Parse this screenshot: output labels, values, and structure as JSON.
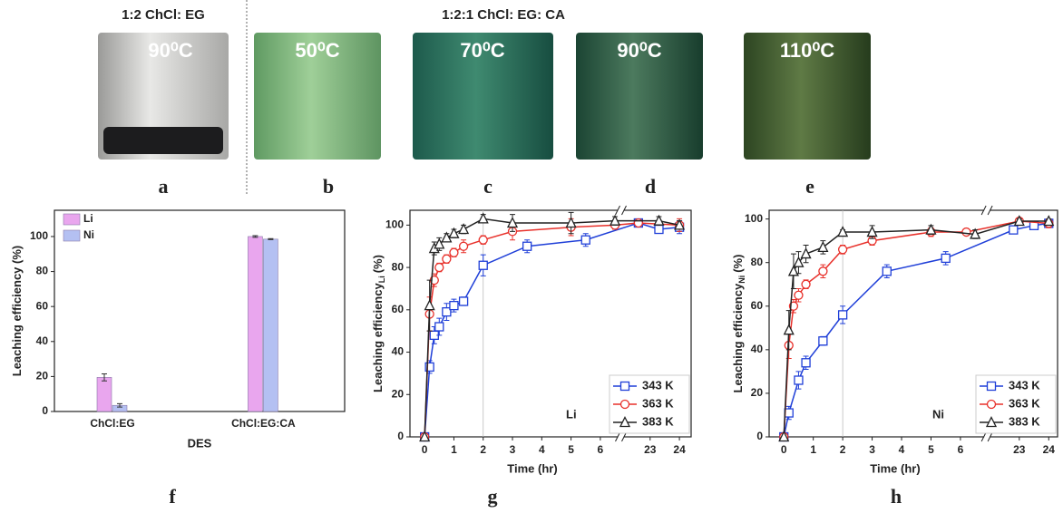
{
  "photos": {
    "group_labels": [
      "1:2 ChCl: EG",
      "1:2:1 ChCl: EG: CA"
    ],
    "temperatures": [
      "90⁰C",
      "50⁰C",
      "70⁰C",
      "90⁰C",
      "110⁰C"
    ],
    "panel_labels": [
      "a",
      "b",
      "c",
      "d",
      "e"
    ]
  },
  "chart_data": [
    {
      "type": "bar",
      "panel_label": "f",
      "xlabel": "DES",
      "ylabel": "Leaching efficiency (%)",
      "categories": [
        "ChCl:EG",
        "ChCl:EG:CA"
      ],
      "series": [
        {
          "name": "Li",
          "color": "#e9a6ee",
          "values": [
            19.5,
            100
          ],
          "errors": [
            2,
            0.5
          ]
        },
        {
          "name": "Ni",
          "color": "#b4c0f2",
          "values": [
            3.5,
            98.5
          ],
          "errors": [
            1,
            0.3
          ]
        }
      ],
      "ylim": [
        0,
        115
      ],
      "yticks": [
        0,
        20,
        40,
        60,
        80,
        100
      ],
      "legend": "upper left"
    },
    {
      "type": "line",
      "panel_label": "g",
      "xlabel": "Time (hr)",
      "ylabel": "Leaching efficiency",
      "ylabel_subscript": "Li",
      "ylabel_suffix": "(%)",
      "annotation": "Li",
      "reference_x": 2,
      "xlim": [
        -0.5,
        24.4
      ],
      "xbreak": [
        6.7,
        22
      ],
      "xticks": [
        0,
        1,
        2,
        3,
        4,
        5,
        6,
        23,
        24
      ],
      "ylim": [
        0,
        107
      ],
      "yticks": [
        0,
        20,
        40,
        60,
        80,
        100
      ],
      "legend": "lower right",
      "series": [
        {
          "name": "343 K",
          "color": "#1f3fd8",
          "marker": "square",
          "x": [
            0,
            0.17,
            0.33,
            0.5,
            0.75,
            1,
            1.33,
            2,
            3.5,
            5.5,
            22.6,
            23.3,
            24
          ],
          "values": [
            0,
            33,
            48,
            52,
            59,
            62,
            64,
            81,
            90,
            93,
            101,
            98,
            99
          ],
          "errors": [
            0,
            3,
            4,
            4,
            4,
            3,
            2,
            5,
            3,
            3,
            1,
            1,
            3
          ]
        },
        {
          "name": "363 K",
          "color": "#e8302a",
          "marker": "circle",
          "x": [
            0,
            0.17,
            0.33,
            0.5,
            0.75,
            1,
            1.33,
            2,
            3,
            5,
            6.5,
            22.6,
            24
          ],
          "values": [
            0,
            58,
            74,
            80,
            84,
            87,
            90,
            93,
            97,
            99,
            100,
            101,
            100
          ],
          "errors": [
            0,
            8,
            3,
            2,
            2,
            2,
            3,
            2,
            4,
            4,
            2,
            1,
            3
          ]
        },
        {
          "name": "383 K",
          "color": "#222222",
          "marker": "triangle",
          "x": [
            0,
            0.17,
            0.33,
            0.5,
            0.75,
            1,
            1.33,
            2,
            3,
            5,
            6.5,
            23.3,
            24
          ],
          "values": [
            0,
            62,
            89,
            91,
            94,
            96,
            98,
            103,
            101,
            101,
            102,
            102,
            100
          ],
          "errors": [
            0,
            12,
            3,
            3,
            2,
            2,
            2,
            2,
            4,
            5,
            2,
            2,
            2
          ]
        }
      ]
    },
    {
      "type": "line",
      "panel_label": "h",
      "xlabel": "Time (hr)",
      "ylabel": "Leaching efficiency",
      "ylabel_subscript": "Ni",
      "ylabel_suffix": "(%)",
      "annotation": "Ni",
      "reference_x": 2,
      "xlim": [
        -0.5,
        24.3
      ],
      "xbreak": [
        6.9,
        21.9
      ],
      "xticks": [
        0,
        1,
        2,
        3,
        4,
        5,
        6,
        23,
        24
      ],
      "ylim": [
        0,
        104
      ],
      "yticks": [
        0,
        20,
        40,
        60,
        80,
        100
      ],
      "legend": "lower right",
      "series": [
        {
          "name": "343 K",
          "color": "#1f3fd8",
          "marker": "square",
          "x": [
            0,
            0.17,
            0.5,
            0.75,
            1.33,
            2,
            3.5,
            5.5,
            22.8,
            23.5,
            24
          ],
          "values": [
            0,
            11,
            26,
            34,
            44,
            56,
            76,
            82,
            95,
            97,
            98
          ],
          "errors": [
            0,
            3,
            4,
            3,
            2,
            4,
            3,
            3,
            1,
            1,
            1
          ]
        },
        {
          "name": "363 K",
          "color": "#e8302a",
          "marker": "circle",
          "x": [
            0,
            0.17,
            0.33,
            0.5,
            0.75,
            1.33,
            2,
            3,
            5,
            6.2,
            23,
            24
          ],
          "values": [
            0,
            42,
            60,
            65,
            70,
            76,
            86,
            90,
            94,
            94,
            99,
            98
          ],
          "errors": [
            0,
            6,
            3,
            3,
            2,
            3,
            2,
            2,
            2,
            1,
            1,
            2
          ]
        },
        {
          "name": "383 K",
          "color": "#222222",
          "marker": "triangle",
          "x": [
            0,
            0.17,
            0.33,
            0.5,
            0.75,
            1.33,
            2,
            3,
            5,
            6.5,
            23,
            24
          ],
          "values": [
            0,
            49,
            76,
            80,
            84,
            87,
            94,
            94,
            95,
            93,
            99,
            99
          ],
          "errors": [
            0,
            9,
            8,
            5,
            4,
            3,
            1,
            3,
            2,
            2,
            1,
            1
          ]
        }
      ]
    }
  ]
}
